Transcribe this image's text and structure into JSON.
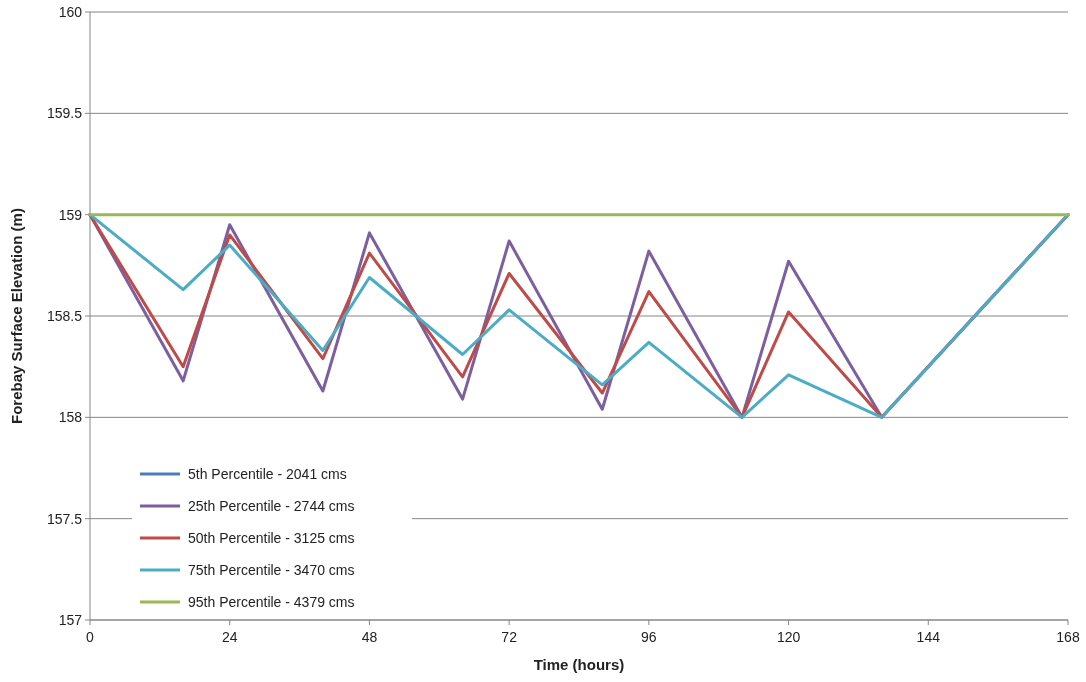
{
  "chart_data": {
    "type": "line",
    "xlabel": "Time (hours)",
    "ylabel": "Forebay Surface Elevation (m)",
    "x": [
      0,
      16,
      24,
      40,
      48,
      64,
      72,
      88,
      96,
      112,
      120,
      136,
      168
    ],
    "xlim": [
      0,
      168
    ],
    "xticks": [
      0,
      24,
      48,
      72,
      96,
      120,
      144,
      168
    ],
    "ylim": [
      157,
      160
    ],
    "yticks": [
      157,
      157.5,
      158,
      158.5,
      159,
      159.5,
      160
    ],
    "grid": "y",
    "legend": "bottom left",
    "marker": "none",
    "line_style": "solid",
    "series": [
      {
        "name": "5th Percentile - 2041 cms",
        "color": "#4a7ebb",
        "values": [
          null,
          null,
          null,
          null,
          null,
          null,
          null,
          null,
          null,
          null,
          null,
          null,
          null
        ]
      },
      {
        "name": "25th Percentile - 2744 cms",
        "color": "#7d5fa0",
        "values": [
          159,
          158.18,
          158.95,
          158.13,
          158.91,
          158.09,
          158.87,
          158.04,
          158.82,
          158,
          158.77,
          158,
          159
        ]
      },
      {
        "name": "50th Percentile - 3125 cms",
        "color": "#be4b48",
        "values": [
          159,
          158.25,
          158.9,
          158.29,
          158.81,
          158.2,
          158.71,
          158.12,
          158.62,
          158,
          158.52,
          158,
          159
        ]
      },
      {
        "name": "75th Percentile - 3470 cms",
        "color": "#4bacc6",
        "values": [
          159,
          158.63,
          158.85,
          158.33,
          158.69,
          158.31,
          158.53,
          158.16,
          158.37,
          158,
          158.21,
          158,
          159
        ]
      },
      {
        "name": "95th Percentile - 4379 cms",
        "color": "#98b954",
        "values": [
          159,
          159,
          159,
          159,
          159,
          159,
          159,
          159,
          159,
          159,
          159,
          159,
          159
        ]
      }
    ]
  }
}
